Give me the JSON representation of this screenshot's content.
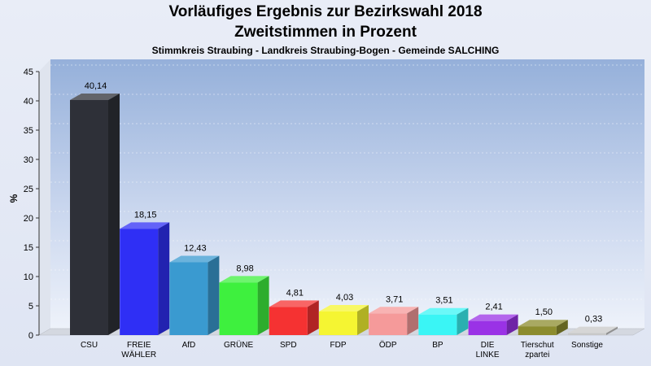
{
  "chart_data": {
    "type": "bar",
    "title": "Vorläufiges Ergebnis zur Bezirkswahl 2018",
    "subtitle": "Zweitstimmen in Prozent",
    "subsubtitle": "Stimmkreis Straubing - Landkreis Straubing-Bogen - Gemeinde SALCHING",
    "xlabel": "",
    "ylabel": "%",
    "ylim": [
      0,
      45
    ],
    "yticks": [
      0,
      5,
      10,
      15,
      20,
      25,
      30,
      35,
      40,
      45
    ],
    "grid": true,
    "categories": [
      [
        "CSU"
      ],
      [
        "FREIE",
        "WÄHLER"
      ],
      [
        "AfD"
      ],
      [
        "GRÜNE"
      ],
      [
        "SPD"
      ],
      [
        "FDP"
      ],
      [
        "ÖDP"
      ],
      [
        "BP"
      ],
      [
        "DIE",
        "LINKE"
      ],
      [
        "Tierschut",
        "zpartei"
      ],
      [
        "Sonstige"
      ]
    ],
    "values": [
      40.14,
      18.15,
      12.43,
      8.98,
      4.81,
      4.03,
      3.71,
      3.51,
      2.41,
      1.5,
      0.33
    ],
    "value_labels": [
      "40,14",
      "18,15",
      "12,43",
      "8,98",
      "4,81",
      "4,03",
      "3,71",
      "3,51",
      "2,41",
      "1,50",
      "0,33"
    ],
    "colors": [
      "#2e3038",
      "#2f2ff5",
      "#3a9ad0",
      "#3ef03e",
      "#f53232",
      "#f5f532",
      "#f59a9a",
      "#3af5f5",
      "#9a32e6",
      "#8c8c2e",
      "#c8c8c8"
    ]
  }
}
